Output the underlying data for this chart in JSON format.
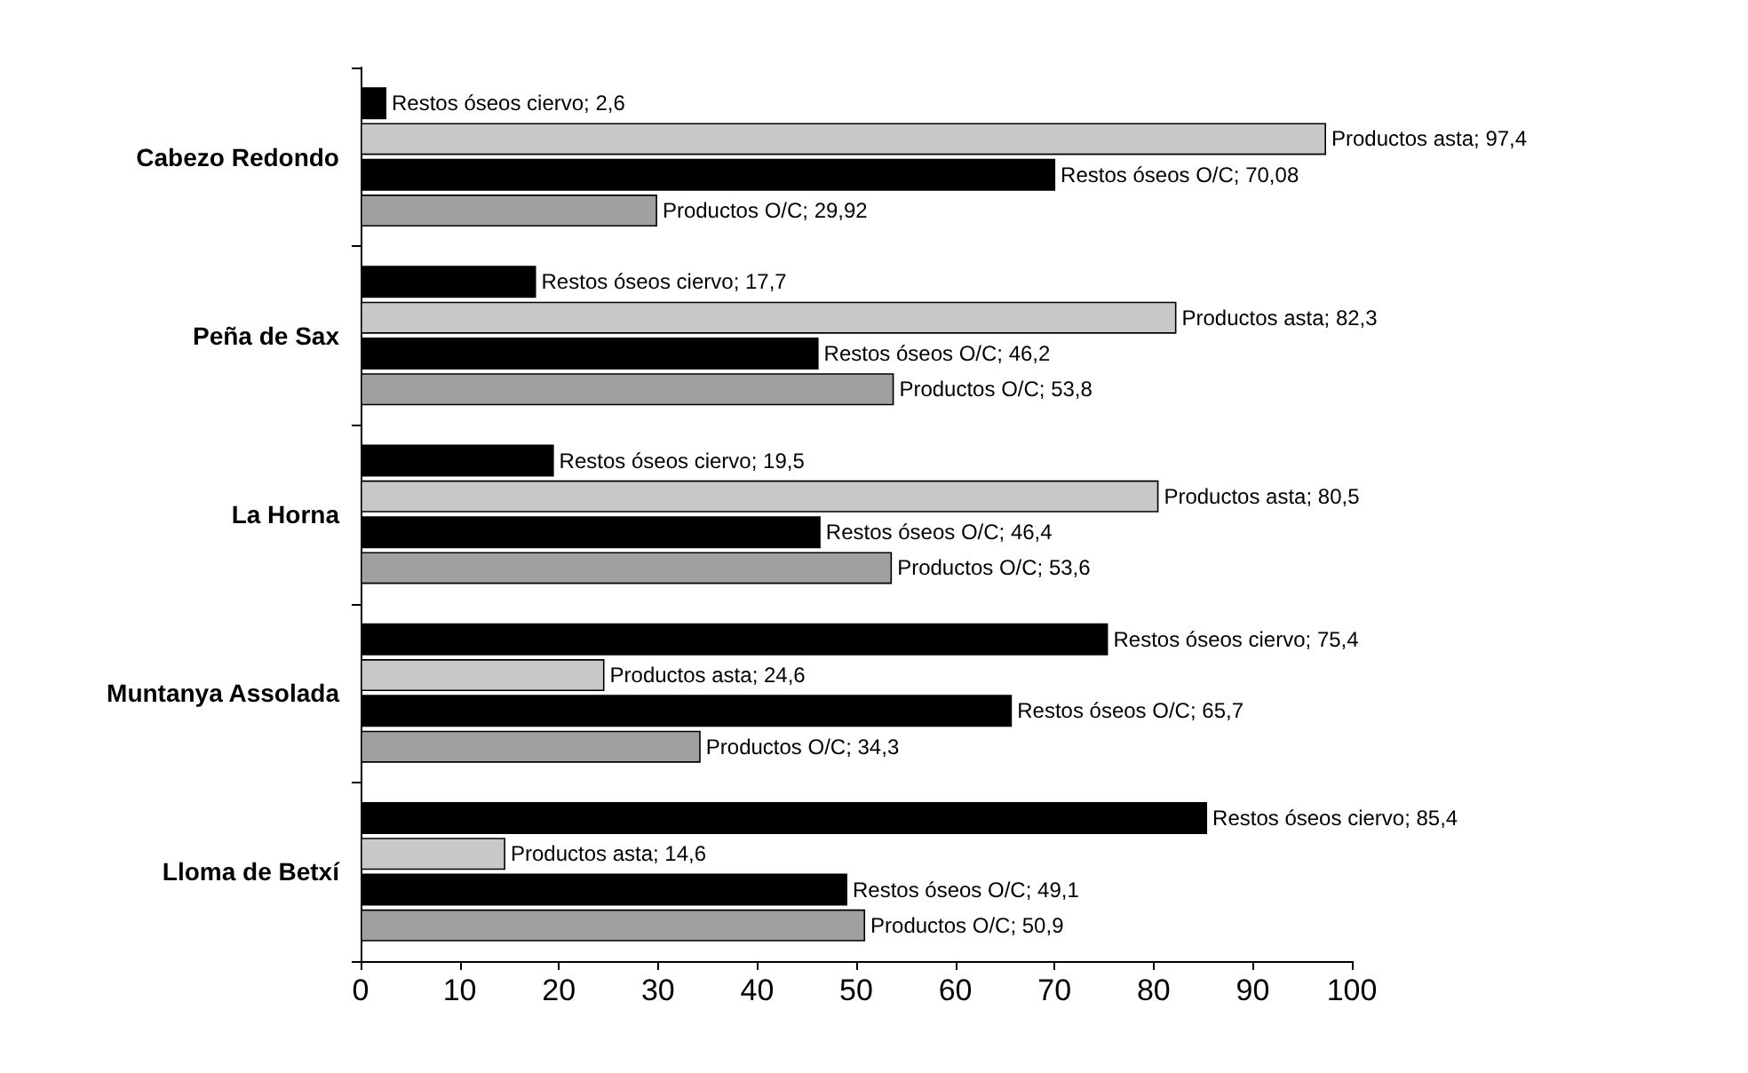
{
  "chart_data": {
    "type": "bar",
    "orientation": "horizontal",
    "categories": [
      "Cabezo Redondo",
      "Peña de Sax",
      "La Horna",
      "Muntanya Assolada",
      "Lloma de Betxí"
    ],
    "series": [
      {
        "color": "#000000",
        "values": [
          2.6,
          17.7,
          19.5,
          75.4,
          85.4
        ],
        "value_labels": [
          "Restos óseos ciervo; 2,6",
          "Restos óseos ciervo; 17,7",
          "Restos óseos ciervo; 19,5",
          "Restos óseos ciervo; 75,4",
          "Restos óseos ciervo; 85,4"
        ]
      },
      {
        "color": "#c8c8c8",
        "values": [
          97.4,
          82.3,
          80.5,
          24.6,
          14.6
        ],
        "value_labels": [
          "Productos asta; 97,4",
          "Productos asta; 82,3",
          "Productos asta; 80,5",
          "Productos asta; 24,6",
          "Productos asta; 14,6"
        ]
      },
      {
        "color": "#000000",
        "values": [
          70.08,
          46.2,
          46.4,
          65.7,
          49.1
        ],
        "value_labels": [
          "Restos óseos O/C; 70,08",
          "Restos óseos O/C; 46,2",
          "Restos óseos O/C; 46,4",
          "Restos óseos O/C; 65,7",
          "Restos óseos O/C; 49,1"
        ]
      },
      {
        "color": "#a0a0a0",
        "values": [
          29.92,
          53.8,
          53.6,
          34.3,
          50.9
        ],
        "value_labels": [
          "Productos O/C; 29,92",
          "Productos O/C; 53,8",
          "Productos O/C; 53,6",
          "Productos O/C; 34,3",
          "Productos O/C; 50,9"
        ]
      }
    ],
    "xlim": [
      0,
      100
    ],
    "xticks": [
      0,
      10,
      20,
      30,
      40,
      50,
      60,
      70,
      80,
      90,
      100
    ],
    "grid": false
  }
}
